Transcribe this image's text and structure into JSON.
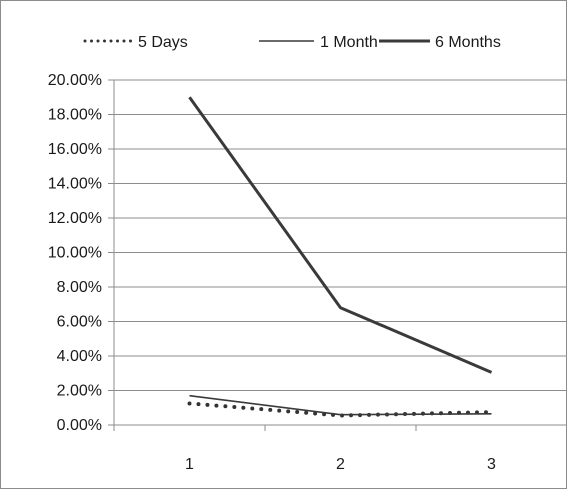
{
  "chart_data": {
    "type": "line",
    "categories": [
      "1",
      "2",
      "3"
    ],
    "series": [
      {
        "name": "5 Days",
        "values": [
          0.0125,
          0.0055,
          0.0075
        ],
        "style": "dotted",
        "color": "#333333"
      },
      {
        "name": "1 Month",
        "values": [
          0.017,
          0.006,
          0.0065
        ],
        "style": "thin",
        "color": "#3a3a3a"
      },
      {
        "name": "6 Months",
        "values": [
          0.19,
          0.068,
          0.0305
        ],
        "style": "thick",
        "color": "#3a3a3a"
      }
    ],
    "y_ticks": [
      "0.00%",
      "2.00%",
      "4.00%",
      "6.00%",
      "8.00%",
      "10.00%",
      "12.00%",
      "14.00%",
      "16.00%",
      "18.00%",
      "20.00%"
    ],
    "ylim": [
      0,
      0.2
    ],
    "grid": true,
    "legend_position": "top"
  }
}
